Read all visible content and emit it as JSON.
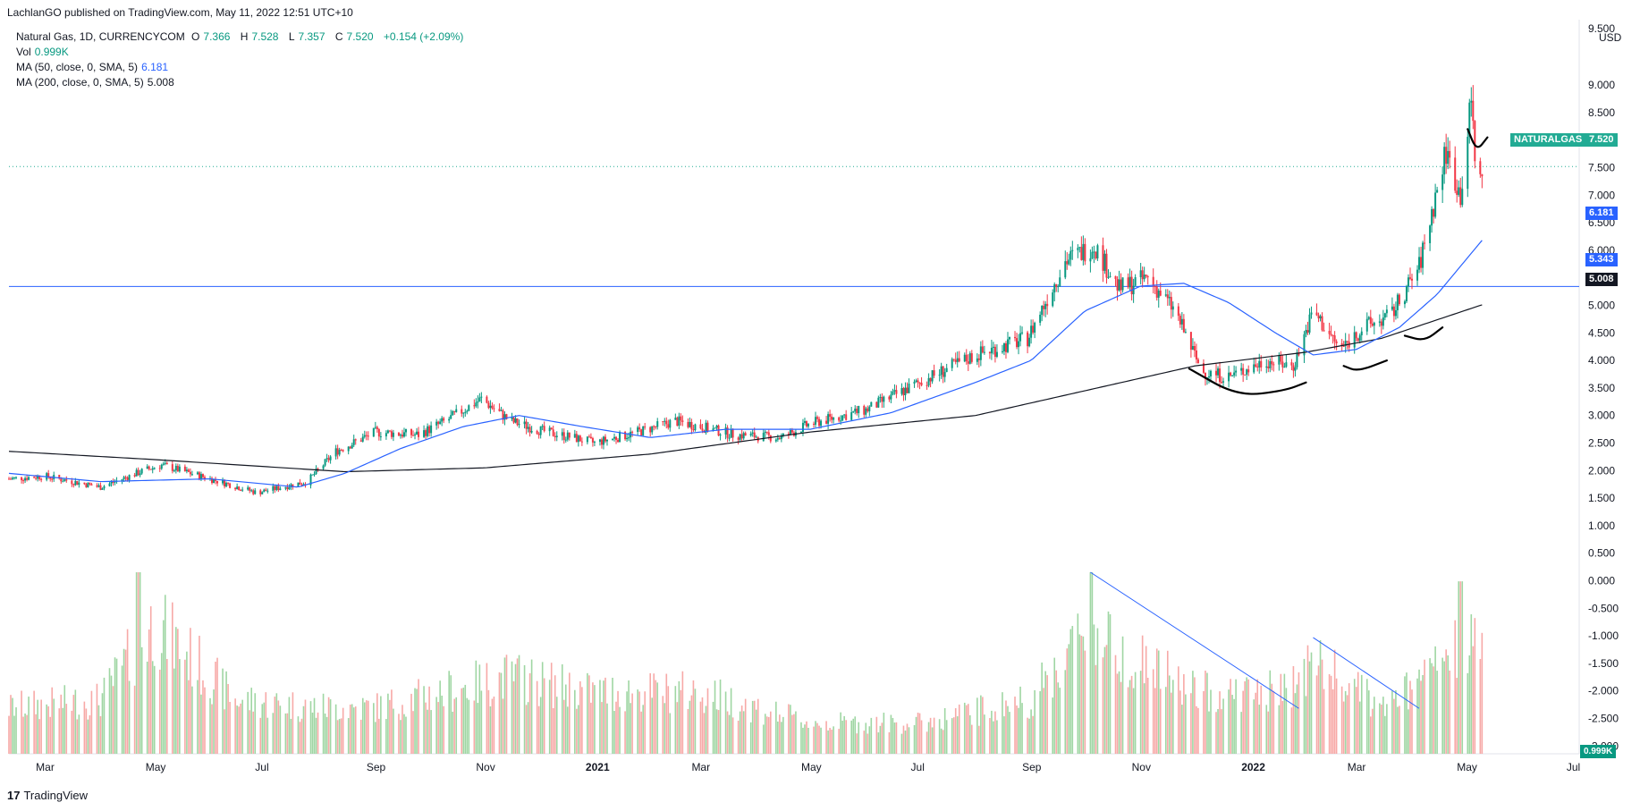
{
  "header": {
    "publisher_line": "LachlanGO published on TradingView.com, May 11, 2022 12:51 UTC+10"
  },
  "legend": {
    "symbol": "Natural Gas, 1D, CURRENCYCOM",
    "open_label": "O",
    "open": "7.366",
    "high_label": "H",
    "high": "7.528",
    "low_label": "L",
    "low": "7.357",
    "close_label": "C",
    "close": "7.520",
    "change": "+0.154 (+2.09%)",
    "vol_label": "Vol",
    "vol": "0.999K",
    "ma50_label": "MA (50, close, 0, SMA, 5)",
    "ma50_value": "6.181",
    "ma200_label": "MA (200, close, 0, SMA, 5)",
    "ma200_value": "5.008"
  },
  "price_scale": {
    "currency": "USD",
    "top_partial": "9.500",
    "ticks": [
      "9.000",
      "8.500",
      "8.000",
      "7.500",
      "7.000",
      "6.500",
      "6.000",
      "5.500",
      "5.000",
      "4.500",
      "4.000",
      "3.500",
      "3.000",
      "2.500",
      "2.000",
      "1.500",
      "1.000",
      "0.500",
      "0.000",
      "-0.500",
      "-1.000",
      "-1.500",
      "-2.000",
      "-2.500",
      "-3.000"
    ],
    "labels": {
      "symbol_name": "NATURALGAS",
      "last_price": "7.520",
      "ma50": "6.181",
      "hline": "5.343",
      "ma200": "5.008",
      "volume": "0.999K"
    }
  },
  "time_axis": [
    {
      "label": "Mar",
      "bold": false
    },
    {
      "label": "May",
      "bold": false
    },
    {
      "label": "Jul",
      "bold": false
    },
    {
      "label": "Sep",
      "bold": false
    },
    {
      "label": "Nov",
      "bold": false
    },
    {
      "label": "2021",
      "bold": true
    },
    {
      "label": "Mar",
      "bold": false
    },
    {
      "label": "May",
      "bold": false
    },
    {
      "label": "Jul",
      "bold": false
    },
    {
      "label": "Sep",
      "bold": false
    },
    {
      "label": "Nov",
      "bold": false
    },
    {
      "label": "2022",
      "bold": true
    },
    {
      "label": "Mar",
      "bold": false
    },
    {
      "label": "May",
      "bold": false
    },
    {
      "label": "Jul",
      "bold": false
    }
  ],
  "brand": {
    "logo_text": "17",
    "name": "TradingView"
  },
  "colors": {
    "up": "#089981",
    "down": "#f23645",
    "ma50": "#2962ff",
    "ma200": "#131722",
    "hline": "#2962ff",
    "last_price": "#22ab94",
    "vol_up": "#9fd6a3",
    "vol_down": "#f7a9a7"
  },
  "chart_data": {
    "type": "candlestick",
    "symbol": "Natural Gas, 1D, CURRENCYCOM",
    "y_range": [
      -3.3,
      9.5
    ],
    "horizontal_line": 5.343,
    "last_close": 7.52,
    "price_path": [
      [
        "2020-02-10",
        1.85
      ],
      [
        "2020-03-01",
        1.9
      ],
      [
        "2020-04-01",
        1.7
      ],
      [
        "2020-04-25",
        2.0
      ],
      [
        "2020-05-05",
        2.1
      ],
      [
        "2020-06-01",
        1.85
      ],
      [
        "2020-06-27",
        1.6
      ],
      [
        "2020-07-25",
        1.8
      ],
      [
        "2020-08-10",
        2.35
      ],
      [
        "2020-09-01",
        2.7
      ],
      [
        "2020-09-25",
        2.65
      ],
      [
        "2020-10-10",
        2.9
      ],
      [
        "2020-10-30",
        3.3
      ],
      [
        "2020-11-15",
        2.9
      ],
      [
        "2020-12-05",
        2.7
      ],
      [
        "2020-12-20",
        2.6
      ],
      [
        "2021-01-01",
        2.5
      ],
      [
        "2021-01-25",
        2.7
      ],
      [
        "2021-02-15",
        2.9
      ],
      [
        "2021-03-01",
        2.8
      ],
      [
        "2021-03-20",
        2.65
      ],
      [
        "2021-04-15",
        2.6
      ],
      [
        "2021-05-01",
        2.85
      ],
      [
        "2021-06-01",
        3.1
      ],
      [
        "2021-07-01",
        3.6
      ],
      [
        "2021-08-01",
        4.1
      ],
      [
        "2021-08-30",
        4.4
      ],
      [
        "2021-09-20",
        5.8
      ],
      [
        "2021-10-06",
        6.1
      ],
      [
        "2021-10-20",
        5.3
      ],
      [
        "2021-11-05",
        5.5
      ],
      [
        "2021-11-20",
        4.9
      ],
      [
        "2021-12-05",
        3.8
      ],
      [
        "2021-12-20",
        3.7
      ],
      [
        "2022-01-10",
        4.0
      ],
      [
        "2022-01-25",
        3.9
      ],
      [
        "2022-02-05",
        4.9
      ],
      [
        "2022-02-20",
        4.2
      ],
      [
        "2022-03-05",
        4.6
      ],
      [
        "2022-03-20",
        4.8
      ],
      [
        "2022-04-05",
        5.7
      ],
      [
        "2022-04-20",
        7.8
      ],
      [
        "2022-04-28",
        7.0
      ],
      [
        "2022-05-04",
        8.7
      ],
      [
        "2022-05-08",
        6.9
      ],
      [
        "2022-05-10",
        7.52
      ]
    ],
    "ma50_path": [
      [
        "2020-02-10",
        1.95
      ],
      [
        "2020-04-01",
        1.8
      ],
      [
        "2020-06-01",
        1.85
      ],
      [
        "2020-07-20",
        1.7
      ],
      [
        "2020-08-15",
        1.95
      ],
      [
        "2020-09-15",
        2.4
      ],
      [
        "2020-10-20",
        2.8
      ],
      [
        "2020-11-20",
        3.0
      ],
      [
        "2020-12-25",
        2.8
      ],
      [
        "2021-02-01",
        2.6
      ],
      [
        "2021-03-15",
        2.75
      ],
      [
        "2021-05-01",
        2.75
      ],
      [
        "2021-06-15",
        3.05
      ],
      [
        "2021-08-01",
        3.6
      ],
      [
        "2021-09-01",
        4.0
      ],
      [
        "2021-10-01",
        4.9
      ],
      [
        "2021-11-01",
        5.35
      ],
      [
        "2021-11-25",
        5.4
      ],
      [
        "2021-12-20",
        5.05
      ],
      [
        "2022-01-15",
        4.5
      ],
      [
        "2022-02-05",
        4.1
      ],
      [
        "2022-03-01",
        4.2
      ],
      [
        "2022-03-25",
        4.6
      ],
      [
        "2022-04-15",
        5.2
      ],
      [
        "2022-05-10",
        6.18
      ]
    ],
    "ma200_path": [
      [
        "2020-02-10",
        2.35
      ],
      [
        "2020-05-01",
        2.2
      ],
      [
        "2020-08-15",
        1.98
      ],
      [
        "2020-11-01",
        2.05
      ],
      [
        "2021-02-01",
        2.3
      ],
      [
        "2021-05-01",
        2.7
      ],
      [
        "2021-08-01",
        3.0
      ],
      [
        "2021-10-01",
        3.45
      ],
      [
        "2021-12-01",
        3.9
      ],
      [
        "2022-02-01",
        4.15
      ],
      [
        "2022-03-15",
        4.4
      ],
      [
        "2022-05-10",
        5.01
      ]
    ],
    "volume_path": [
      [
        "2020-02-10",
        0.3
      ],
      [
        "2020-04-01",
        0.35
      ],
      [
        "2020-05-01",
        0.85
      ],
      [
        "2020-06-15",
        0.35
      ],
      [
        "2020-08-01",
        0.3
      ],
      [
        "2020-09-01",
        0.3
      ],
      [
        "2020-11-15",
        0.5
      ],
      [
        "2021-01-01",
        0.4
      ],
      [
        "2021-03-01",
        0.4
      ],
      [
        "2021-05-01",
        0.2
      ],
      [
        "2021-07-01",
        0.2
      ],
      [
        "2021-09-01",
        0.35
      ],
      [
        "2021-10-01",
        0.8
      ],
      [
        "2021-11-01",
        0.6
      ],
      [
        "2021-12-01",
        0.4
      ],
      [
        "2022-01-20",
        0.4
      ],
      [
        "2022-02-05",
        0.6
      ],
      [
        "2022-03-15",
        0.3
      ],
      [
        "2022-04-05",
        0.45
      ],
      [
        "2022-05-01",
        0.75
      ],
      [
        "2022-05-10",
        0.72
      ]
    ],
    "volume_spikes": [
      [
        "2020-04-22",
        1.0
      ],
      [
        "2021-10-04",
        1.0
      ],
      [
        "2022-04-28",
        0.95
      ]
    ]
  },
  "annotations": {
    "volume_trendlines": [
      {
        "from": [
          "2021-10-04",
          1.0
        ],
        "to": [
          "2022-01-28",
          0.25
        ]
      },
      {
        "from": [
          "2022-02-05",
          0.64
        ],
        "to": [
          "2022-04-05",
          0.25
        ]
      }
    ],
    "drawn_curves": [
      {
        "name": "base-curve",
        "points": [
          [
            "2021-11-28",
            3.85
          ],
          [
            "2021-12-25",
            3.35
          ],
          [
            "2022-01-20",
            3.45
          ],
          [
            "2022-02-01",
            3.6
          ]
        ]
      },
      {
        "name": "right-shoulder-curve",
        "points": [
          [
            "2022-02-22",
            3.9
          ],
          [
            "2022-03-02",
            3.8
          ],
          [
            "2022-03-18",
            4.0
          ]
        ]
      },
      {
        "name": "cup-curve",
        "points": [
          [
            "2022-03-28",
            4.45
          ],
          [
            "2022-04-08",
            4.35
          ],
          [
            "2022-04-18",
            4.6
          ]
        ]
      },
      {
        "name": "handle-curve",
        "points": [
          [
            "2022-05-02",
            8.2
          ],
          [
            "2022-05-07",
            7.8
          ],
          [
            "2022-05-13",
            8.05
          ]
        ]
      }
    ]
  }
}
